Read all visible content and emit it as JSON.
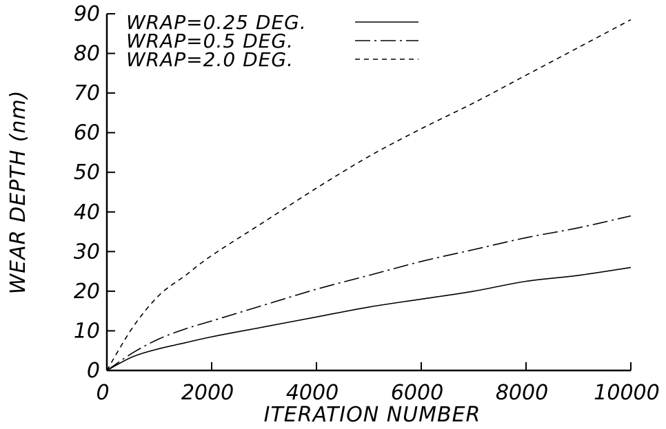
{
  "chart_data": {
    "type": "line",
    "title": "",
    "xlabel": "ITERATION NUMBER",
    "ylabel": "WEAR DEPTH (nm)",
    "xlim": [
      0,
      10000
    ],
    "ylim": [
      0,
      90
    ],
    "xticks": [
      0,
      2000,
      4000,
      6000,
      8000,
      10000
    ],
    "xtick_labels": [
      "0",
      "2000",
      "4000",
      "6000",
      "8000",
      "10000"
    ],
    "yticks": [
      0,
      10,
      20,
      30,
      40,
      50,
      60,
      70,
      80,
      90
    ],
    "ytick_labels": [
      "0",
      "10",
      "20",
      "30",
      "40",
      "50",
      "60",
      "70",
      "80",
      "90"
    ],
    "grid": false,
    "legend_position": "top-left",
    "series": [
      {
        "name": "WRAP=0.25 DEG.",
        "style": "solid",
        "x": [
          0,
          500,
          1000,
          1500,
          2000,
          3000,
          4000,
          5000,
          6000,
          7000,
          8000,
          9000,
          10000
        ],
        "y": [
          0,
          3.5,
          5.5,
          7,
          8.5,
          11,
          13.5,
          16,
          18,
          20,
          22.5,
          24,
          26
        ]
      },
      {
        "name": "WRAP=0.5 DEG.",
        "style": "dash-dot",
        "x": [
          0,
          500,
          1000,
          1500,
          2000,
          3000,
          4000,
          5000,
          6000,
          7000,
          8000,
          9000,
          10000
        ],
        "y": [
          0,
          4.5,
          8,
          10.5,
          12.5,
          16.5,
          20.5,
          24,
          27.5,
          30.5,
          33.5,
          36,
          39
        ]
      },
      {
        "name": "WRAP=2.0 DEG.",
        "style": "dashed",
        "x": [
          0,
          500,
          1000,
          1500,
          2000,
          3000,
          4000,
          5000,
          6000,
          7000,
          8000,
          9000,
          10000
        ],
        "y": [
          0,
          11,
          19,
          24,
          29,
          37.5,
          46,
          54,
          61,
          67.5,
          74.5,
          81.5,
          88.5
        ]
      }
    ]
  }
}
